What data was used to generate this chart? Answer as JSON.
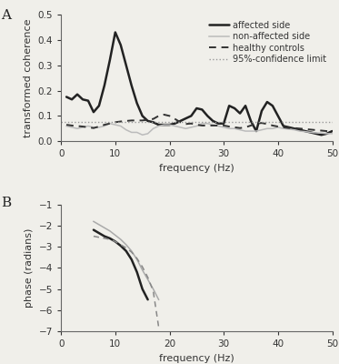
{
  "panel_A": {
    "title": "A",
    "xlabel": "frequency (Hz)",
    "ylabel": "transformed coherence",
    "xlim": [
      0,
      50
    ],
    "ylim": [
      0,
      0.5
    ],
    "yticks": [
      0,
      0.1,
      0.2,
      0.3,
      0.4,
      0.5
    ],
    "xticks": [
      0,
      10,
      20,
      30,
      40,
      50
    ],
    "confidence_limit": 0.075,
    "affected_side": {
      "x": [
        1,
        2,
        3,
        4,
        5,
        6,
        7,
        8,
        9,
        10,
        11,
        12,
        13,
        14,
        15,
        16,
        17,
        18,
        19,
        20,
        21,
        22,
        23,
        24,
        25,
        26,
        27,
        28,
        29,
        30,
        31,
        32,
        33,
        34,
        35,
        36,
        37,
        38,
        39,
        40,
        41,
        42,
        43,
        44,
        45,
        46,
        47,
        48,
        49,
        50
      ],
      "y": [
        0.175,
        0.165,
        0.185,
        0.165,
        0.16,
        0.115,
        0.14,
        0.22,
        0.32,
        0.43,
        0.38,
        0.3,
        0.22,
        0.15,
        0.1,
        0.08,
        0.075,
        0.065,
        0.065,
        0.065,
        0.07,
        0.08,
        0.09,
        0.1,
        0.13,
        0.125,
        0.1,
        0.08,
        0.07,
        0.07,
        0.14,
        0.13,
        0.11,
        0.14,
        0.08,
        0.04,
        0.12,
        0.155,
        0.14,
        0.1,
        0.06,
        0.055,
        0.05,
        0.045,
        0.04,
        0.035,
        0.03,
        0.025,
        0.03,
        0.04
      ],
      "color": "#222222",
      "linewidth": 1.8,
      "linestyle": "-",
      "label": "affected side"
    },
    "non_affected_side": {
      "x": [
        1,
        2,
        3,
        4,
        5,
        6,
        7,
        8,
        9,
        10,
        11,
        12,
        13,
        14,
        15,
        16,
        17,
        18,
        19,
        20,
        21,
        22,
        23,
        24,
        25,
        26,
        27,
        28,
        29,
        30,
        31,
        32,
        33,
        34,
        35,
        36,
        37,
        38,
        39,
        40,
        41,
        42,
        43,
        44,
        45,
        46,
        47,
        48,
        49,
        50
      ],
      "y": [
        0.06,
        0.055,
        0.05,
        0.055,
        0.06,
        0.055,
        0.055,
        0.06,
        0.07,
        0.065,
        0.06,
        0.045,
        0.035,
        0.035,
        0.025,
        0.03,
        0.05,
        0.06,
        0.065,
        0.065,
        0.06,
        0.055,
        0.05,
        0.055,
        0.06,
        0.07,
        0.07,
        0.065,
        0.06,
        0.055,
        0.05,
        0.05,
        0.045,
        0.04,
        0.04,
        0.04,
        0.045,
        0.05,
        0.05,
        0.055,
        0.05,
        0.048,
        0.045,
        0.04,
        0.038,
        0.035,
        0.033,
        0.032,
        0.03,
        0.03
      ],
      "color": "#bbbbbb",
      "linewidth": 1.1,
      "linestyle": "-",
      "label": "non-affected side"
    },
    "healthy_controls": {
      "x": [
        1,
        2,
        3,
        4,
        5,
        6,
        7,
        8,
        9,
        10,
        11,
        12,
        13,
        14,
        15,
        16,
        17,
        18,
        19,
        20,
        21,
        22,
        23,
        24,
        25,
        26,
        27,
        28,
        29,
        30,
        31,
        32,
        33,
        34,
        35,
        36,
        37,
        38,
        39,
        40,
        41,
        42,
        43,
        44,
        45,
        46,
        47,
        48,
        49,
        50
      ],
      "y": [
        0.065,
        0.062,
        0.06,
        0.058,
        0.055,
        0.052,
        0.058,
        0.065,
        0.07,
        0.075,
        0.078,
        0.08,
        0.082,
        0.082,
        0.082,
        0.085,
        0.088,
        0.1,
        0.105,
        0.1,
        0.088,
        0.075,
        0.068,
        0.07,
        0.065,
        0.062,
        0.062,
        0.062,
        0.062,
        0.062,
        0.058,
        0.055,
        0.052,
        0.055,
        0.062,
        0.07,
        0.072,
        0.068,
        0.062,
        0.058,
        0.055,
        0.052,
        0.052,
        0.05,
        0.048,
        0.046,
        0.044,
        0.042,
        0.04,
        0.038
      ],
      "color": "#333333",
      "linewidth": 1.4,
      "linestyle": "--",
      "label": "healthy controls",
      "dashes": [
        4,
        3
      ]
    }
  },
  "panel_B": {
    "title": "B",
    "xlabel": "frequency (Hz)",
    "ylabel": "phase (radians)",
    "xlim": [
      0,
      50
    ],
    "ylim": [
      -7,
      -1
    ],
    "yticks": [
      -7,
      -6,
      -5,
      -4,
      -3,
      -2,
      -1
    ],
    "xticks": [
      0,
      10,
      20,
      30,
      40,
      50
    ],
    "line_solid": {
      "x": [
        6,
        7,
        8,
        9,
        10,
        11,
        12,
        13,
        14,
        15,
        16
      ],
      "y": [
        -2.2,
        -2.35,
        -2.5,
        -2.6,
        -2.75,
        -2.95,
        -3.2,
        -3.6,
        -4.2,
        -5.0,
        -5.5
      ],
      "color": "#222222",
      "linewidth": 1.8,
      "linestyle": "-"
    },
    "line_gray": {
      "x": [
        6,
        7,
        8,
        9,
        10,
        11,
        12,
        13,
        14,
        15,
        16,
        17,
        18
      ],
      "y": [
        -1.8,
        -1.95,
        -2.1,
        -2.25,
        -2.45,
        -2.65,
        -2.9,
        -3.2,
        -3.6,
        -4.1,
        -4.55,
        -5.0,
        -5.5
      ],
      "color": "#aaaaaa",
      "linewidth": 1.1,
      "linestyle": "-"
    },
    "line_dashed": {
      "x": [
        6,
        7,
        8,
        9,
        10,
        11,
        12,
        13,
        14,
        15,
        16,
        17,
        18
      ],
      "y": [
        -2.5,
        -2.55,
        -2.6,
        -2.65,
        -2.75,
        -2.9,
        -3.05,
        -3.25,
        -3.55,
        -3.95,
        -4.45,
        -5.1,
        -6.8
      ],
      "color": "#888888",
      "linewidth": 1.1,
      "linestyle": "--",
      "dashes": [
        4,
        3
      ]
    }
  },
  "background_color": "#f0efea",
  "legend_fontsize": 7.0,
  "axis_fontsize": 8,
  "tick_fontsize": 7.5
}
